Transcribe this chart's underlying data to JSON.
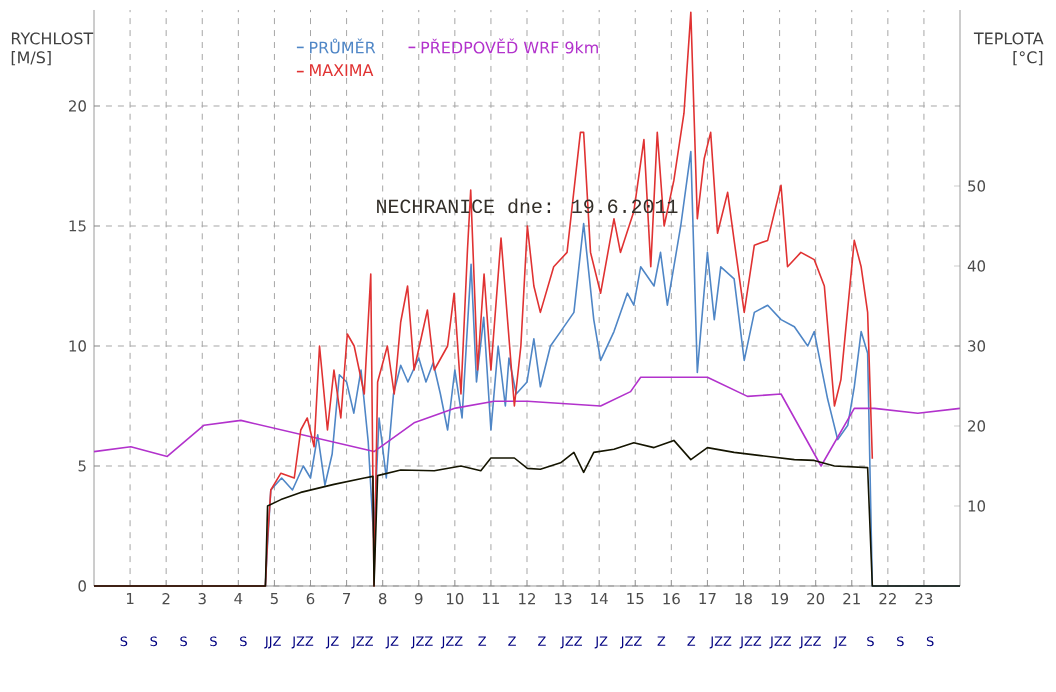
{
  "chart_data": {
    "type": "line",
    "title": "NECHRANICE dne: 19.6.2011",
    "ylabel": "RYCHLOST [M/S]",
    "y2label": "TEPLOTA [°C]",
    "xlim": [
      0,
      24
    ],
    "xticks": [
      1,
      2,
      3,
      4,
      5,
      6,
      7,
      8,
      9,
      10,
      11,
      12,
      13,
      14,
      15,
      16,
      17,
      18,
      19,
      20,
      21,
      22,
      23
    ],
    "ylim": [
      0,
      24
    ],
    "yticks": [
      0,
      5,
      10,
      15,
      20
    ],
    "y2lim": [
      0,
      72
    ],
    "y2ticks": [
      10,
      20,
      30,
      40,
      50
    ],
    "annotations": [
      "S",
      "S",
      "S",
      "S",
      "S",
      "JJZ",
      "JZZ",
      "JZ",
      "JZZ",
      "JZ",
      "JZZ",
      "JZZ",
      "Z",
      "Z",
      "Z",
      "JZZ",
      "JZ",
      "JZZ",
      "Z",
      "Z",
      "JZZ",
      "JZZ",
      "JZZ",
      "JZZ",
      "JZ",
      "S",
      "S",
      "S"
    ],
    "grid": true,
    "legend": "top",
    "marker": "none",
    "series": [
      {
        "name": "PRŮMĚR",
        "color": "#4f86c6",
        "x": [
          0,
          4.75,
          4.8,
          4.9,
          5.2,
          5.5,
          5.8,
          6.0,
          6.2,
          6.4,
          6.6,
          6.8,
          7.0,
          7.2,
          7.4,
          7.6,
          7.75,
          7.9,
          8.1,
          8.3,
          8.5,
          8.7,
          9.0,
          9.2,
          9.4,
          9.6,
          9.8,
          10.0,
          10.2,
          10.45,
          10.6,
          10.8,
          11.0,
          11.2,
          11.4,
          11.5,
          11.7,
          12.0,
          12.19,
          12.37,
          12.65,
          12.93,
          13.3,
          13.57,
          13.85,
          14.04,
          14.41,
          14.78,
          14.96,
          15.15,
          15.52,
          15.7,
          15.89,
          16.26,
          16.54,
          16.72,
          17.0,
          17.19,
          17.37,
          17.74,
          18.02,
          18.3,
          18.67,
          19.04,
          19.41,
          19.78,
          19.96,
          20.33,
          20.61,
          20.89,
          21.07,
          21.26,
          21.44,
          21.57,
          24
        ],
        "values": [
          0,
          0,
          1.5,
          4.0,
          4.5,
          4.0,
          5.0,
          4.5,
          6.3,
          4.2,
          5.5,
          8.8,
          8.5,
          7.2,
          9.0,
          6.0,
          2.0,
          7.0,
          4.5,
          8.0,
          9.2,
          8.5,
          9.5,
          8.5,
          9.3,
          8.0,
          6.5,
          9.0,
          7.0,
          13.4,
          8.5,
          11.2,
          6.5,
          10.0,
          7.5,
          9.5,
          8.0,
          8.5,
          10.3,
          8.3,
          10.0,
          10.6,
          11.4,
          15.1,
          11.1,
          9.4,
          10.6,
          12.2,
          11.7,
          13.3,
          12.5,
          13.9,
          11.7,
          15.0,
          18.1,
          8.9,
          13.9,
          11.1,
          13.3,
          12.8,
          9.4,
          11.4,
          11.7,
          11.1,
          10.8,
          10.0,
          10.6,
          7.8,
          6.1,
          6.7,
          8.3,
          10.6,
          9.7,
          0,
          0
        ]
      },
      {
        "name": "PŘEDPOVĚĎ WRF 9km",
        "color": "#b232cc",
        "x": [
          0,
          1.02,
          2.03,
          3.05,
          4.07,
          7.76,
          8.87,
          9.98,
          11.09,
          12.01,
          14.04,
          14.87,
          15.15,
          17.0,
          18.11,
          19.04,
          20.15,
          21.07,
          21.63,
          22.83,
          24
        ],
        "values": [
          5.6,
          5.8,
          5.4,
          6.7,
          6.9,
          5.6,
          6.8,
          7.4,
          7.7,
          7.7,
          7.5,
          8.1,
          8.7,
          8.7,
          7.9,
          8.0,
          5.0,
          7.4,
          7.4,
          7.2,
          7.4
        ]
      },
      {
        "name": "MAXIMA",
        "color": "#e03232",
        "x": [
          0,
          4.75,
          4.81,
          4.9,
          5.18,
          5.55,
          5.73,
          5.91,
          6.1,
          6.25,
          6.47,
          6.65,
          6.84,
          7.02,
          7.21,
          7.49,
          7.67,
          7.76,
          7.86,
          8.13,
          8.32,
          8.5,
          8.69,
          8.87,
          9.24,
          9.43,
          9.8,
          9.98,
          10.17,
          10.35,
          10.44,
          10.63,
          10.81,
          11.0,
          11.28,
          11.65,
          11.83,
          12.01,
          12.19,
          12.37,
          12.74,
          13.11,
          13.48,
          13.57,
          13.76,
          14.04,
          14.41,
          14.59,
          14.96,
          15.24,
          15.43,
          15.61,
          15.8,
          16.07,
          16.35,
          16.54,
          16.72,
          16.91,
          17.09,
          17.28,
          17.56,
          17.74,
          18.02,
          18.3,
          18.67,
          19.04,
          19.22,
          19.59,
          19.96,
          20.24,
          20.52,
          20.7,
          21.07,
          21.26,
          21.44,
          21.57
        ],
        "values": [
          0,
          0,
          2.0,
          4.0,
          4.7,
          4.5,
          6.5,
          7.0,
          5.8,
          10.0,
          6.5,
          9.0,
          7.0,
          10.5,
          10.0,
          8.0,
          13.0,
          0,
          8.5,
          10.0,
          8.0,
          11.0,
          12.5,
          9.0,
          11.5,
          9.0,
          10.0,
          12.2,
          8.0,
          14.0,
          16.5,
          9.0,
          13.0,
          9.0,
          14.5,
          7.5,
          10.0,
          15.0,
          12.5,
          11.4,
          13.3,
          13.9,
          18.9,
          18.9,
          13.9,
          12.2,
          15.3,
          13.9,
          15.6,
          18.6,
          13.3,
          18.9,
          15.0,
          16.9,
          19.7,
          23.9,
          15.3,
          17.8,
          18.9,
          14.7,
          16.4,
          14.4,
          11.4,
          14.2,
          14.4,
          16.7,
          13.3,
          13.9,
          13.6,
          12.5,
          7.5,
          8.6,
          14.4,
          13.3,
          11.4,
          5.3
        ]
      },
      {
        "color": "#141400",
        "axis": "y2",
        "x": [
          0,
          4.75,
          4.81,
          5.18,
          5.73,
          6.65,
          7.49,
          7.73,
          7.76,
          7.86,
          8.5,
          9.43,
          10.17,
          10.72,
          11.0,
          11.65,
          12.01,
          12.37,
          12.93,
          13.3,
          13.57,
          13.85,
          14.41,
          14.96,
          15.52,
          16.07,
          16.54,
          17.0,
          17.74,
          18.48,
          19.41,
          19.96,
          20.52,
          21.44,
          21.57,
          24
        ],
        "values": [
          0,
          0,
          10.0,
          10.8,
          11.7,
          12.7,
          13.5,
          13.7,
          0,
          13.8,
          14.5,
          14.4,
          15.0,
          14.4,
          16.0,
          16.0,
          14.7,
          14.6,
          15.4,
          16.7,
          14.2,
          16.7,
          17.1,
          17.9,
          17.3,
          18.2,
          15.8,
          17.3,
          16.7,
          16.3,
          15.8,
          15.7,
          15.0,
          14.8,
          0,
          0
        ]
      }
    ]
  }
}
